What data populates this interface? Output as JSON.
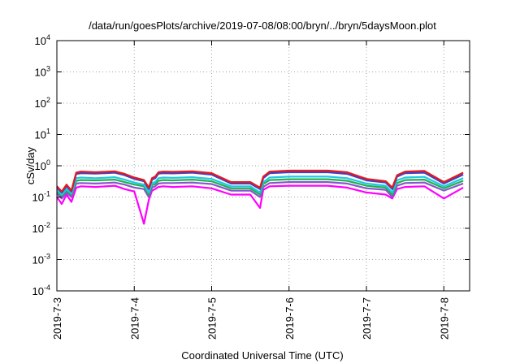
{
  "chart_data": {
    "type": "line",
    "title": "/data/run/goesPlots/archive/2019-07-08/08:00/bryn/../bryn/5daysMoon.plot",
    "xlabel": "Coordinated Universal Time (UTC)",
    "ylabel": "cSv/day",
    "yscale": "log",
    "ylim": [
      0.0001,
      10000
    ],
    "xlim": [
      "2019-07-03 00:00",
      "2019-07-08 08:00"
    ],
    "x_ticks": [
      "2019-7-3",
      "2019-7-4",
      "2019-7-5",
      "2019-7-6",
      "2019-7-7",
      "2019-7-8"
    ],
    "y_ticks": [
      {
        "base": "10",
        "exp": "-4"
      },
      {
        "base": "10",
        "exp": "-3"
      },
      {
        "base": "10",
        "exp": "-2"
      },
      {
        "base": "10",
        "exp": "-1"
      },
      {
        "base": "10",
        "exp": "0"
      },
      {
        "base": "10",
        "exp": "1"
      },
      {
        "base": "10",
        "exp": "2"
      },
      {
        "base": "10",
        "exp": "3"
      },
      {
        "base": "10",
        "exp": "4"
      }
    ],
    "grid": true,
    "legend": "none",
    "x_hours": [
      0,
      1.5,
      3,
      4.5,
      6,
      7.5,
      12,
      18,
      21,
      24,
      27,
      28.5,
      29.5,
      30.5,
      31.5,
      33,
      36,
      42,
      48,
      54,
      60,
      63,
      64,
      66,
      72,
      84,
      90,
      96,
      102,
      104,
      105.5,
      108,
      114,
      120,
      126
    ],
    "series": [
      {
        "color": "#e41a1c",
        "values": [
          0.22,
          0.15,
          0.25,
          0.16,
          0.6,
          0.65,
          0.62,
          0.66,
          0.55,
          0.42,
          0.35,
          0.2,
          0.4,
          0.45,
          0.62,
          0.65,
          0.64,
          0.66,
          0.58,
          0.3,
          0.3,
          0.2,
          0.45,
          0.65,
          0.7,
          0.7,
          0.62,
          0.38,
          0.32,
          0.2,
          0.5,
          0.65,
          0.68,
          0.3,
          0.6
        ]
      },
      {
        "color": "#4040c8",
        "values": [
          0.2,
          0.14,
          0.22,
          0.15,
          0.55,
          0.58,
          0.56,
          0.6,
          0.5,
          0.38,
          0.32,
          0.18,
          0.36,
          0.4,
          0.56,
          0.58,
          0.57,
          0.6,
          0.52,
          0.27,
          0.27,
          0.18,
          0.4,
          0.58,
          0.62,
          0.62,
          0.55,
          0.34,
          0.29,
          0.18,
          0.45,
          0.58,
          0.6,
          0.27,
          0.52
        ]
      },
      {
        "color": "#1ec8e6",
        "values": [
          0.17,
          0.12,
          0.18,
          0.13,
          0.4,
          0.42,
          0.4,
          0.43,
          0.36,
          0.29,
          0.25,
          0.14,
          0.28,
          0.3,
          0.4,
          0.42,
          0.41,
          0.43,
          0.38,
          0.22,
          0.22,
          0.14,
          0.3,
          0.42,
          0.45,
          0.45,
          0.4,
          0.27,
          0.23,
          0.14,
          0.34,
          0.42,
          0.44,
          0.22,
          0.4
        ]
      },
      {
        "color": "#22b14c",
        "values": [
          0.15,
          0.11,
          0.16,
          0.12,
          0.33,
          0.35,
          0.34,
          0.36,
          0.3,
          0.25,
          0.22,
          0.12,
          0.24,
          0.26,
          0.33,
          0.35,
          0.34,
          0.36,
          0.32,
          0.19,
          0.19,
          0.12,
          0.26,
          0.35,
          0.37,
          0.37,
          0.33,
          0.23,
          0.2,
          0.12,
          0.28,
          0.35,
          0.36,
          0.19,
          0.33
        ]
      },
      {
        "color": "#8855cc",
        "values": [
          0.13,
          0.09,
          0.14,
          0.1,
          0.27,
          0.28,
          0.27,
          0.29,
          0.25,
          0.2,
          0.18,
          0.1,
          0.2,
          0.22,
          0.27,
          0.28,
          0.28,
          0.29,
          0.26,
          0.16,
          0.16,
          0.1,
          0.21,
          0.28,
          0.3,
          0.3,
          0.27,
          0.19,
          0.17,
          0.1,
          0.23,
          0.28,
          0.29,
          0.16,
          0.27
        ]
      },
      {
        "color": "#ff00ff",
        "values": [
          0.1,
          0.06,
          0.12,
          0.07,
          0.2,
          0.22,
          0.21,
          0.23,
          0.18,
          0.15,
          0.014,
          0.08,
          0.16,
          0.18,
          0.21,
          0.22,
          0.21,
          0.22,
          0.19,
          0.12,
          0.12,
          0.045,
          0.17,
          0.22,
          0.23,
          0.23,
          0.2,
          0.14,
          0.12,
          0.09,
          0.18,
          0.21,
          0.22,
          0.09,
          0.2
        ]
      }
    ]
  }
}
